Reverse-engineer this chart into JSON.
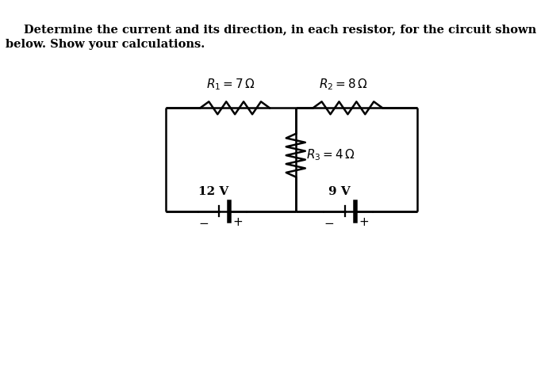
{
  "title_line1": "Determine the current and its direction, in each resistor, for the circuit shown",
  "title_line2": "below. Show your calculations.",
  "R1_label": "$R_1 = 7\\,\\Omega$",
  "R2_label": "$R_2 = 8\\,\\Omega$",
  "R3_label": "$R_3 = 4\\,\\Omega$",
  "V1_label": "12 V",
  "V2_label": "9 V",
  "bg_color": "#ffffff",
  "line_color": "#000000",
  "title_fontsize": 10.5,
  "label_fontsize": 11
}
